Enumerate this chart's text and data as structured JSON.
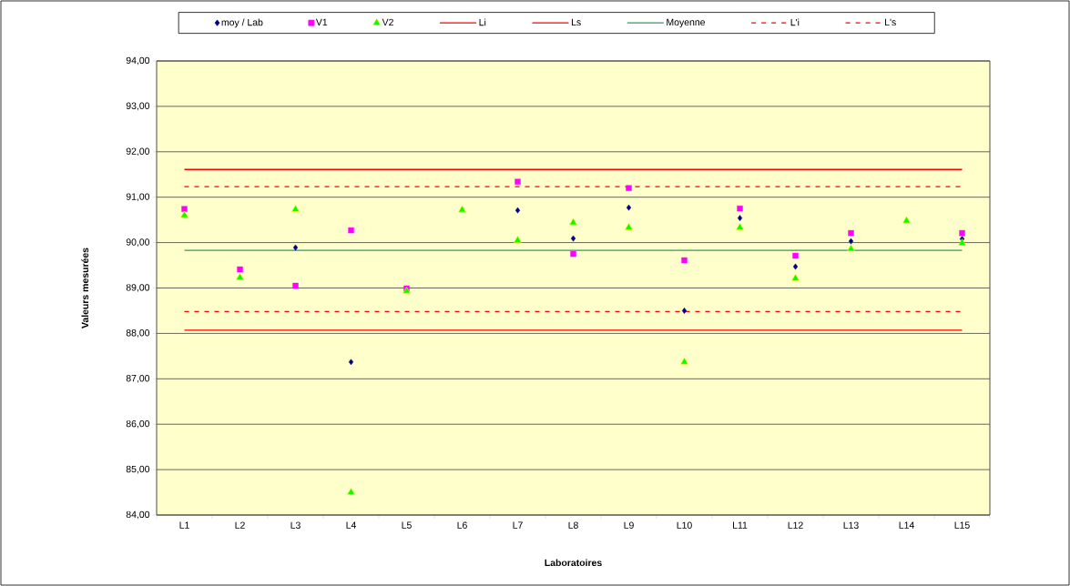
{
  "chart_data": {
    "type": "scatter",
    "xlabel": "Laboratoires",
    "ylabel": "Valeurs mesurées",
    "categories": [
      "L1",
      "L2",
      "L3",
      "L4",
      "L5",
      "L6",
      "L7",
      "L8",
      "L9",
      "L10",
      "L11",
      "L12",
      "L13",
      "L14",
      "L15"
    ],
    "ylim": [
      84,
      94
    ],
    "yticks": [
      {
        "value": 84,
        "label": "84,00"
      },
      {
        "value": 85,
        "label": "85,00"
      },
      {
        "value": 86,
        "label": "86,00"
      },
      {
        "value": 87,
        "label": "87,00"
      },
      {
        "value": 88,
        "label": "88,00"
      },
      {
        "value": 89,
        "label": "89,00"
      },
      {
        "value": 90,
        "label": "90,00"
      },
      {
        "value": 91,
        "label": "91,00"
      },
      {
        "value": 92,
        "label": "92,00"
      },
      {
        "value": 93,
        "label": "93,00"
      },
      {
        "value": 94,
        "label": "94,00"
      }
    ],
    "grid": "y",
    "legend": "top",
    "series": [
      {
        "name": "moy / Lab",
        "marker": "diamond",
        "color": "#000080",
        "values": [
          null,
          null,
          89.89,
          87.37,
          null,
          null,
          90.71,
          90.09,
          90.77,
          88.5,
          90.54,
          89.47,
          90.03,
          null,
          90.08
        ]
      },
      {
        "name": "V1",
        "marker": "square",
        "color": "#ff00ff",
        "values": [
          90.74,
          89.41,
          89.05,
          90.27,
          88.99,
          null,
          91.34,
          89.75,
          91.2,
          89.61,
          90.75,
          89.71,
          90.21,
          null,
          90.21
        ]
      },
      {
        "name": "V2",
        "marker": "triangle",
        "color": "#00ff00",
        "values": [
          90.6,
          89.23,
          90.73,
          84.5,
          88.93,
          90.72,
          90.05,
          90.44,
          90.33,
          87.37,
          90.33,
          89.21,
          89.86,
          90.48,
          89.99
        ]
      },
      {
        "name": "Li",
        "type": "line",
        "marker": "none",
        "line_style": "solid",
        "color": "#ff0000",
        "values": [
          88.07,
          88.07,
          88.07,
          88.07,
          88.07,
          88.07,
          88.07,
          88.07,
          88.07,
          88.07,
          88.07,
          88.07,
          88.07,
          88.07,
          88.07
        ]
      },
      {
        "name": "Ls",
        "type": "line",
        "marker": "none",
        "line_style": "solid",
        "color": "#ff0000",
        "values": [
          91.61,
          91.61,
          91.61,
          91.61,
          91.61,
          91.61,
          91.61,
          91.61,
          91.61,
          91.61,
          91.61,
          91.61,
          91.61,
          91.61,
          91.61
        ]
      },
      {
        "name": "Moyenne",
        "type": "line",
        "marker": "none",
        "line_style": "solid",
        "color": "#339966",
        "values": [
          89.83,
          89.83,
          89.83,
          89.83,
          89.83,
          89.83,
          89.83,
          89.83,
          89.83,
          89.83,
          89.83,
          89.83,
          89.83,
          89.83,
          89.83
        ]
      },
      {
        "name": "L'i",
        "type": "line",
        "marker": "none",
        "line_style": "dashed",
        "color": "#ff0000",
        "values": [
          88.48,
          88.48,
          88.48,
          88.48,
          88.48,
          88.48,
          88.48,
          88.48,
          88.48,
          88.48,
          88.48,
          88.48,
          88.48,
          88.48,
          88.48
        ]
      },
      {
        "name": "L's",
        "type": "line",
        "marker": "none",
        "line_style": "dashed",
        "color": "#ff0000",
        "values": [
          91.23,
          91.23,
          91.23,
          91.23,
          91.23,
          91.23,
          91.23,
          91.23,
          91.23,
          91.23,
          91.23,
          91.23,
          91.23,
          91.23,
          91.23
        ]
      }
    ]
  }
}
